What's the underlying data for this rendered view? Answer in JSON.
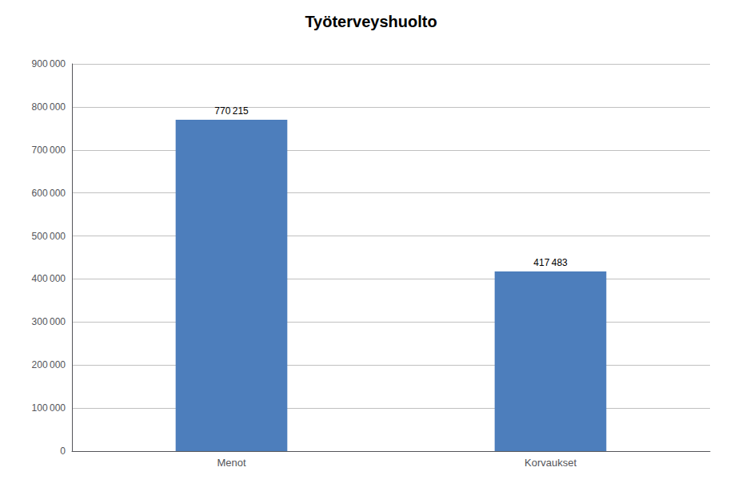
{
  "chart_data": {
    "type": "bar",
    "title": "Työterveyshuolto",
    "categories": [
      "Menot",
      "Korvaukset"
    ],
    "values": [
      770215,
      417483
    ],
    "value_labels": [
      "770 215",
      "417 483"
    ],
    "color": "#4d7ebc",
    "ylim": [
      0,
      900000
    ],
    "yticks": [
      0,
      {
        "value": 100000,
        "label": "100 000"
      },
      {
        "value": 200000,
        "label": "200 000"
      },
      {
        "value": 300000,
        "label": "300 000"
      },
      {
        "value": 400000,
        "label": "400 000"
      },
      {
        "value": 500000,
        "label": "500 000"
      },
      {
        "value": 600000,
        "label": "600 000"
      },
      {
        "value": 700000,
        "label": "700 000"
      },
      {
        "value": 800000,
        "label": "800 000"
      },
      {
        "value": 900000,
        "label": "900 000"
      }
    ],
    "grid": true,
    "data_labels": true
  }
}
